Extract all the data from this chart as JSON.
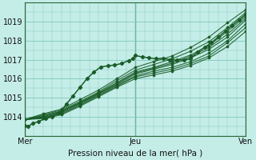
{
  "xlabel": "Pression niveau de la mer( hPa )",
  "bg_color": "#c5ede8",
  "grid_color": "#7ec8bc",
  "line_color": "#1a5c28",
  "xlim": [
    0,
    48
  ],
  "ylim": [
    1013.2,
    1019.9
  ],
  "yticks": [
    1014,
    1015,
    1016,
    1017,
    1018,
    1019
  ],
  "xtick_positions": [
    0,
    24,
    48
  ],
  "xtick_labels": [
    "Mer",
    "Jeu",
    "Ven"
  ],
  "main_x": [
    0.0,
    0.8,
    1.8,
    3.0,
    4.5,
    6.0,
    7.5,
    9.0,
    10.5,
    12.0,
    13.5,
    15.0,
    16.5,
    18.0,
    19.5,
    21.0,
    22.5,
    23.5,
    24.0,
    25.5,
    27.0,
    28.5,
    30.0,
    31.5,
    33.0,
    34.5,
    36.0,
    37.5,
    39.0,
    40.5,
    42.0,
    43.5,
    45.0,
    46.5,
    48.0
  ],
  "main_y": [
    1013.55,
    1013.5,
    1013.65,
    1013.75,
    1013.9,
    1014.0,
    1014.2,
    1014.65,
    1015.1,
    1015.55,
    1016.0,
    1016.35,
    1016.62,
    1016.68,
    1016.72,
    1016.8,
    1016.95,
    1017.05,
    1017.22,
    1017.15,
    1017.1,
    1017.05,
    1017.08,
    1017.0,
    1016.98,
    1017.0,
    1017.05,
    1017.4,
    1017.65,
    1017.9,
    1018.2,
    1018.5,
    1018.8,
    1019.1,
    1019.4
  ],
  "ensemble_lines": [
    {
      "x": [
        0.0,
        4.0,
        8.0,
        12.0,
        16.0,
        20.0,
        24.0,
        28.0,
        32.0,
        36.0,
        40.0,
        44.0,
        48.0
      ],
      "y": [
        1013.85,
        1013.95,
        1014.15,
        1014.6,
        1015.1,
        1015.6,
        1016.1,
        1016.3,
        1016.5,
        1016.8,
        1017.2,
        1017.9,
        1018.7
      ]
    },
    {
      "x": [
        0.0,
        4.0,
        8.0,
        12.0,
        16.0,
        20.0,
        24.0,
        28.0,
        32.0,
        36.0,
        40.0,
        44.0,
        48.0
      ],
      "y": [
        1013.85,
        1013.9,
        1014.1,
        1014.55,
        1015.05,
        1015.55,
        1016.0,
        1016.2,
        1016.4,
        1016.7,
        1017.1,
        1017.7,
        1018.5
      ]
    },
    {
      "x": [
        0.0,
        4.0,
        8.0,
        12.0,
        16.0,
        20.0,
        24.0,
        28.0,
        32.0,
        36.0,
        40.0,
        44.0,
        48.0
      ],
      "y": [
        1013.85,
        1013.95,
        1014.2,
        1014.65,
        1015.15,
        1015.65,
        1016.15,
        1016.4,
        1016.6,
        1016.9,
        1017.35,
        1018.0,
        1018.9
      ]
    },
    {
      "x": [
        0.0,
        4.0,
        8.0,
        12.0,
        16.0,
        20.0,
        24.0,
        28.0,
        32.0,
        36.0,
        40.0,
        44.0,
        48.0
      ],
      "y": [
        1013.85,
        1014.0,
        1014.25,
        1014.7,
        1015.2,
        1015.7,
        1016.25,
        1016.5,
        1016.75,
        1017.1,
        1017.55,
        1018.2,
        1019.1
      ]
    },
    {
      "x": [
        0.0,
        4.0,
        8.0,
        12.0,
        16.0,
        20.0,
        24.0,
        28.0,
        32.0,
        36.0,
        40.0,
        44.0,
        48.0
      ],
      "y": [
        1013.85,
        1014.05,
        1014.3,
        1014.75,
        1015.25,
        1015.8,
        1016.35,
        1016.6,
        1016.9,
        1017.25,
        1017.75,
        1018.5,
        1019.3
      ]
    },
    {
      "x": [
        0.0,
        4.0,
        8.0,
        12.0,
        16.0,
        20.0,
        24.0,
        28.0,
        32.0,
        36.0,
        40.0,
        44.0,
        48.0
      ],
      "y": [
        1013.85,
        1014.1,
        1014.35,
        1014.8,
        1015.3,
        1015.9,
        1016.45,
        1016.75,
        1017.05,
        1017.45,
        1017.95,
        1018.7,
        1019.5
      ]
    },
    {
      "x": [
        0.0,
        4.0,
        8.0,
        12.0,
        16.0,
        20.0,
        24.0,
        28.0,
        32.0,
        36.0,
        40.0,
        44.0,
        48.0
      ],
      "y": [
        1013.85,
        1014.15,
        1014.4,
        1014.9,
        1015.4,
        1016.0,
        1016.6,
        1016.9,
        1017.2,
        1017.65,
        1018.2,
        1018.95,
        1019.65
      ]
    },
    {
      "x": [
        0.0,
        4.0,
        8.0,
        12.0,
        16.0,
        20.0,
        24.0,
        28.0,
        32.0,
        36.0,
        40.0,
        44.0,
        48.0
      ],
      "y": [
        1013.85,
        1014.0,
        1014.28,
        1014.72,
        1015.22,
        1015.75,
        1016.3,
        1016.55,
        1016.82,
        1017.18,
        1017.65,
        1018.35,
        1019.2
      ]
    }
  ]
}
